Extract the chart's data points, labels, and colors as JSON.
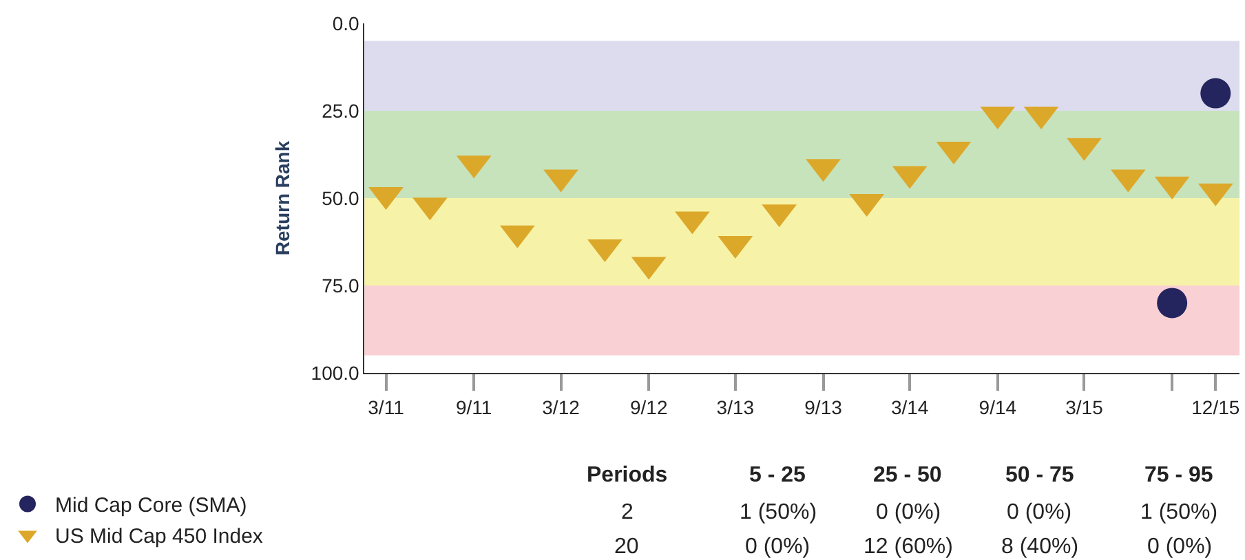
{
  "chart_data": {
    "type": "scatter",
    "ylabel": "Return Rank",
    "x": [
      "2011-03",
      "2011-06",
      "2011-09",
      "2011-12",
      "2012-03",
      "2012-06",
      "2012-09",
      "2012-12",
      "2013-03",
      "2013-06",
      "2013-09",
      "2013-12",
      "2014-03",
      "2014-06",
      "2014-09",
      "2014-12",
      "2015-03",
      "2015-06",
      "2015-09",
      "2015-12"
    ],
    "series": [
      {
        "name": "Mid Cap Core (SMA)",
        "color": "#24245e",
        "marker": "circle",
        "values": [
          null,
          null,
          null,
          null,
          null,
          null,
          null,
          null,
          null,
          null,
          null,
          null,
          null,
          null,
          null,
          null,
          null,
          null,
          80,
          20
        ]
      },
      {
        "name": "US Mid Cap 450 Index",
        "color": "#dca82a",
        "marker": "triangle",
        "values": [
          49,
          52,
          40,
          60,
          44,
          64,
          69,
          56,
          63,
          54,
          41,
          51,
          43,
          36,
          26,
          26,
          35,
          44,
          46,
          48
        ]
      }
    ],
    "ylim": [
      100,
      0
    ],
    "yticks": [
      {
        "value": 0,
        "label": "0.0"
      },
      {
        "value": 25,
        "label": "25.0"
      },
      {
        "value": 50,
        "label": "50.0"
      },
      {
        "value": 75,
        "label": "75.0"
      },
      {
        "value": 100,
        "label": "100.0"
      }
    ],
    "xlim": [
      "2011-01-15",
      "2016-01-20"
    ],
    "xticks": [
      {
        "value": "2011-03",
        "label": "3/11"
      },
      {
        "value": "2011-09",
        "label": "9/11"
      },
      {
        "value": "2012-03",
        "label": "3/12"
      },
      {
        "value": "2012-09",
        "label": "9/12"
      },
      {
        "value": "2013-03",
        "label": "3/13"
      },
      {
        "value": "2013-09",
        "label": "9/13"
      },
      {
        "value": "2014-03",
        "label": "3/14"
      },
      {
        "value": "2014-09",
        "label": "9/14"
      },
      {
        "value": "2015-03",
        "label": "3/15"
      },
      {
        "value": "2015-09",
        "label": null
      },
      {
        "value": "2015-12",
        "label": "12/15"
      }
    ],
    "bands": [
      {
        "axis": "y",
        "from": 5,
        "to": 25,
        "color": "#dcdcee"
      },
      {
        "axis": "y",
        "from": 25,
        "to": 50,
        "color": "#c7e3bc"
      },
      {
        "axis": "y",
        "from": 50,
        "to": 75,
        "color": "#f6f3a8"
      },
      {
        "axis": "y",
        "from": 75,
        "to": 95,
        "color": "#f9d0d4"
      }
    ],
    "grid": false,
    "legend": "bottom left",
    "annotations": [
      "Periods",
      "5 - 25",
      "25 - 50",
      "50 - 75",
      "75 - 95",
      "2",
      "1 (50%)",
      "0 (0%)",
      "0 (0%)",
      "1 (50%)",
      "20",
      "0 (0%)",
      "12 (60%)",
      "8 (40%)",
      "0 (0%)"
    ]
  }
}
